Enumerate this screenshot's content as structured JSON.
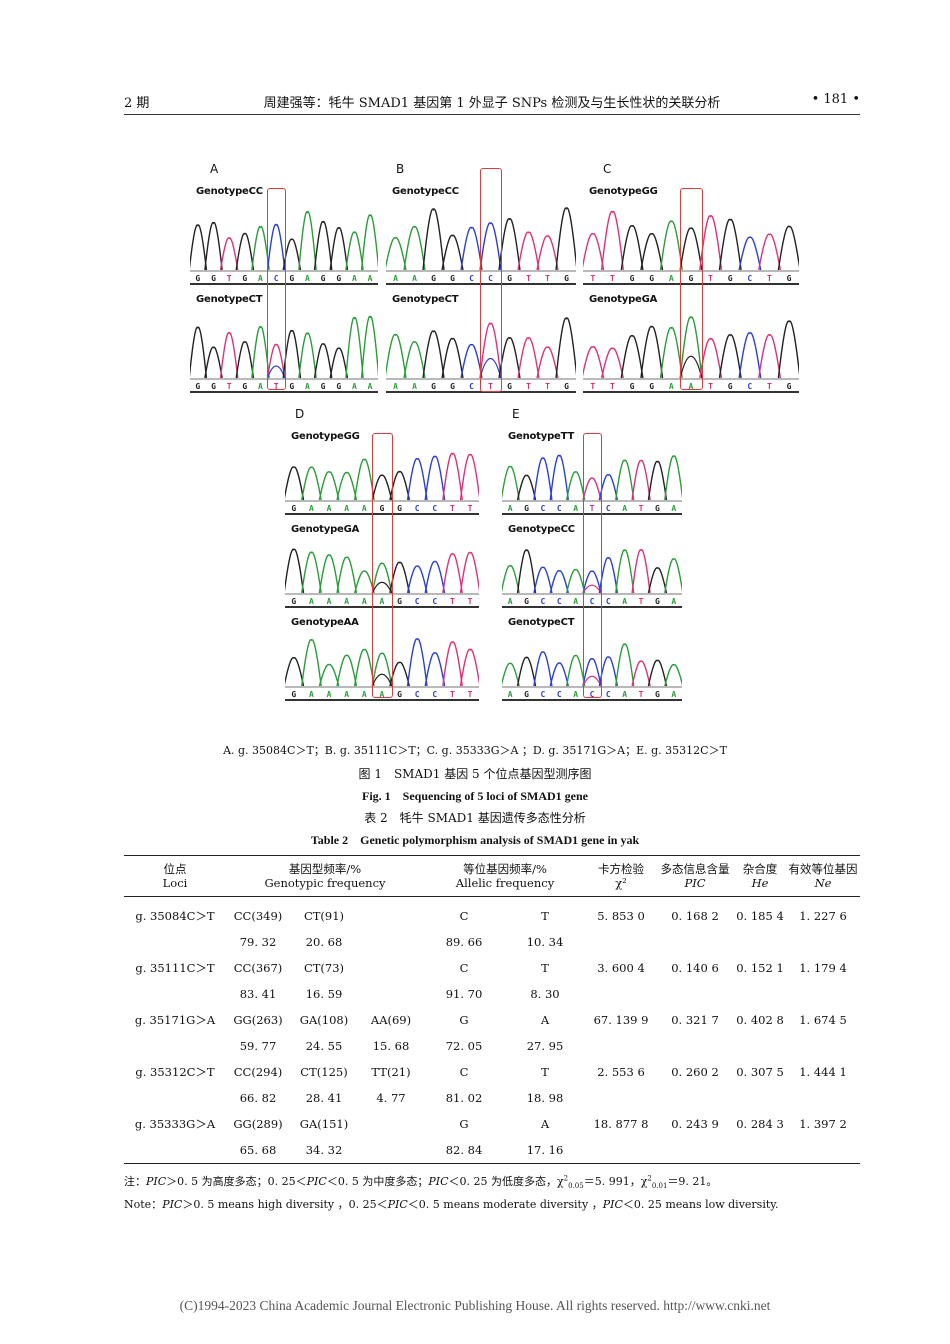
{
  "header": {
    "issue": "2 期",
    "title": "周建强等：牦牛 SMAD1 基因第 1 外显子 SNPs 检测及与生长性状的关联分析",
    "page": "• 181 •"
  },
  "figure": {
    "colors": {
      "A": "#2a9d3a",
      "C": "#2b3fd6",
      "G": "#222222",
      "T": "#e0307a",
      "highlight": "#e03a3a"
    },
    "panels": [
      {
        "label": "A",
        "tracks": [
          {
            "genotype": "GenotypeCC",
            "bases": [
              "G",
              "G",
              "T",
              "G",
              "A",
              "C",
              "G",
              "A",
              "G",
              "G",
              "A",
              "A"
            ]
          },
          {
            "genotype": "GenotypeCT",
            "bases": [
              "G",
              "G",
              "T",
              "G",
              "A",
              "T",
              "G",
              "A",
              "G",
              "G",
              "A",
              "A"
            ]
          }
        ]
      },
      {
        "label": "B",
        "tracks": [
          {
            "genotype": "GenotypeCC",
            "bases": [
              "A",
              "A",
              "G",
              "G",
              "C",
              "C",
              "G",
              "T",
              "T",
              "G"
            ]
          },
          {
            "genotype": "GenotypeCT",
            "bases": [
              "A",
              "A",
              "G",
              "G",
              "C",
              "T",
              "G",
              "T",
              "T",
              "G"
            ]
          }
        ]
      },
      {
        "label": "C",
        "tracks": [
          {
            "genotype": "GenotypeGG",
            "bases": [
              "T",
              "T",
              "G",
              "G",
              "A",
              "G",
              "T",
              "G",
              "C",
              "T",
              "G"
            ]
          },
          {
            "genotype": "GenotypeGA",
            "bases": [
              "T",
              "T",
              "G",
              "G",
              "A",
              "A",
              "T",
              "G",
              "C",
              "T",
              "G"
            ]
          }
        ]
      },
      {
        "label": "D",
        "tracks": [
          {
            "genotype": "GenotypeGG",
            "bases": [
              "G",
              "A",
              "A",
              "A",
              "A",
              "G",
              "G",
              "C",
              "C",
              "T",
              "T"
            ]
          },
          {
            "genotype": "GenotypeGA",
            "bases": [
              "G",
              "A",
              "A",
              "A",
              "A",
              "A",
              "G",
              "C",
              "C",
              "T",
              "T"
            ]
          },
          {
            "genotype": "GenotypeAA",
            "bases": [
              "G",
              "A",
              "A",
              "A",
              "A",
              "A",
              "G",
              "C",
              "C",
              "T",
              "T"
            ]
          }
        ]
      },
      {
        "label": "E",
        "tracks": [
          {
            "genotype": "GenotypeTT",
            "bases": [
              "A",
              "G",
              "C",
              "C",
              "A",
              "T",
              "C",
              "A",
              "T",
              "G",
              "A"
            ]
          },
          {
            "genotype": "GenotypeCC",
            "bases": [
              "A",
              "G",
              "C",
              "C",
              "A",
              "C",
              "C",
              "A",
              "T",
              "G",
              "A"
            ]
          },
          {
            "genotype": "GenotypeCT",
            "bases": [
              "A",
              "G",
              "C",
              "C",
              "A",
              "C",
              "C",
              "A",
              "T",
              "G",
              "A"
            ]
          }
        ]
      }
    ]
  },
  "captions": {
    "loci": "A. g. 35084C＞T；B. g. 35111C＞T；C. g. 35333G＞A ；D. g. 35171G＞A；E. g. 35312C＞T",
    "fig_cn": "图 1　SMAD1 基因 5 个位点基因型测序图",
    "fig_en": "Fig. 1　Sequencing of 5 loci of SMAD1 gene",
    "table_cn": "表 2　牦牛 SMAD1 基因遗传多态性分析",
    "table_en": "Table 2　Genetic polymorphism analysis of SMAD1 gene in yak"
  },
  "table": {
    "headers": {
      "loci_cn": "位点",
      "loci_en": "Loci",
      "geno_cn": "基因型频率/%",
      "geno_en": "Genotypic frequency",
      "allele_cn": "等位基因频率/%",
      "allele_en": "Allelic frequency",
      "chi_cn": "卡方检验",
      "chi_en": "χ²",
      "pic_cn": "多态信息含量",
      "pic_en": "PIC",
      "he_cn": "杂合度",
      "he_en": "He",
      "ne_cn": "有效等位基因",
      "ne_en": "Ne"
    },
    "rows": [
      {
        "locus": "g. 35084C＞T",
        "g1": "CC(349)",
        "g2": "CT(91)",
        "g3": "",
        "a1": "C",
        "a2": "T",
        "chi": "5. 853 0",
        "pic": "0. 168 2",
        "he": "0. 185 4",
        "ne": "1. 227 6",
        "f1": "79. 32",
        "f2": "20. 68",
        "f3": "",
        "af1": "89. 66",
        "af2": "10. 34"
      },
      {
        "locus": "g. 35111C＞T",
        "g1": "CC(367)",
        "g2": "CT(73)",
        "g3": "",
        "a1": "C",
        "a2": "T",
        "chi": "3. 600 4",
        "pic": "0. 140 6",
        "he": "0. 152 1",
        "ne": "1. 179 4",
        "f1": "83. 41",
        "f2": "16. 59",
        "f3": "",
        "af1": "91. 70",
        "af2": "8. 30"
      },
      {
        "locus": "g. 35171G＞A",
        "g1": "GG(263)",
        "g2": "GA(108)",
        "g3": "AA(69)",
        "a1": "G",
        "a2": "A",
        "chi": "67. 139 9",
        "pic": "0. 321 7",
        "he": "0. 402 8",
        "ne": "1. 674 5",
        "f1": "59. 77",
        "f2": "24. 55",
        "f3": "15. 68",
        "af1": "72. 05",
        "af2": "27. 95"
      },
      {
        "locus": "g. 35312C＞T",
        "g1": "CC(294)",
        "g2": "CT(125)",
        "g3": "TT(21)",
        "a1": "C",
        "a2": "T",
        "chi": "2. 553 6",
        "pic": "0. 260 2",
        "he": "0. 307 5",
        "ne": "1. 444 1",
        "f1": "66. 82",
        "f2": "28. 41",
        "f3": "4. 77",
        "af1": "81. 02",
        "af2": "18. 98"
      },
      {
        "locus": "g. 35333G＞A",
        "g1": "GG(289)",
        "g2": "GA(151)",
        "g3": "",
        "a1": "G",
        "a2": "A",
        "chi": "18. 877 8",
        "pic": "0. 243 9",
        "he": "0. 284 3",
        "ne": "1. 397 2",
        "f1": "65. 68",
        "f2": "34. 32",
        "f3": "",
        "af1": "82. 84",
        "af2": "17. 16"
      }
    ]
  },
  "notes": {
    "cn": "注：PIC＞0. 5 为高度多态；0. 25＜PIC＜0. 5 为中度多态；PIC＜0. 25 为低度多态，χ²0.05＝5. 991，χ²0.01＝9. 21。",
    "en": "Note：PIC＞0. 5 means high diversity ，0. 25＜PIC＜0. 5 means moderate diversity ，PIC＜0. 25 means low diversity."
  },
  "footer": "(C)1994-2023 China Academic Journal Electronic Publishing House. All rights reserved.    http://www.cnki.net"
}
